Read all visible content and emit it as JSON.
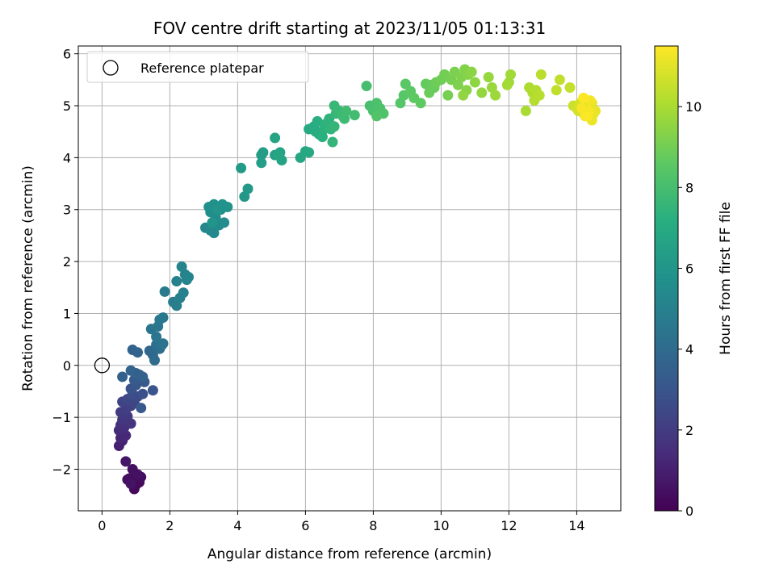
{
  "chart_data": {
    "type": "scatter",
    "title": "FOV centre drift starting at 2023/11/05 01:13:31",
    "xlabel": "Angular distance from reference (arcmin)",
    "ylabel": "Rotation from reference (arcmin)",
    "colorbar_label": "Hours from first FF file",
    "xlim": [
      -0.7,
      15.3
    ],
    "ylim": [
      -2.8,
      6.15
    ],
    "clim": [
      0,
      11.5
    ],
    "x_ticks": [
      0,
      2,
      4,
      6,
      8,
      10,
      12,
      14
    ],
    "y_ticks": [
      -2,
      -1,
      0,
      1,
      2,
      3,
      4,
      5,
      6
    ],
    "colorbar_ticks": [
      0,
      2,
      4,
      6,
      8,
      10
    ],
    "grid": true,
    "colormap": "viridis",
    "legend": {
      "position": "top-left",
      "entries": [
        "Reference platepar"
      ]
    },
    "reference_point": {
      "x": 0,
      "y": 0
    },
    "points": [
      [
        0.9,
        -2.22,
        0.1
      ],
      [
        1.0,
        -2.3,
        0.2
      ],
      [
        0.95,
        -2.38,
        0.25
      ],
      [
        1.1,
        -2.25,
        0.3
      ],
      [
        0.8,
        -2.18,
        0.35
      ],
      [
        1.15,
        -2.15,
        0.4
      ],
      [
        0.75,
        -2.2,
        0.45
      ],
      [
        0.9,
        -2.0,
        0.5
      ],
      [
        1.05,
        -2.1,
        0.55
      ],
      [
        0.85,
        -2.28,
        0.6
      ],
      [
        0.7,
        -1.85,
        0.7
      ],
      [
        0.5,
        -1.55,
        1.0
      ],
      [
        0.6,
        -1.45,
        1.1
      ],
      [
        0.55,
        -1.4,
        1.2
      ],
      [
        0.7,
        -1.35,
        1.3
      ],
      [
        0.5,
        -1.25,
        1.4
      ],
      [
        0.65,
        -1.2,
        1.5
      ],
      [
        0.55,
        -1.15,
        1.6
      ],
      [
        0.85,
        -1.12,
        1.7
      ],
      [
        0.6,
        -1.05,
        1.8
      ],
      [
        0.75,
        -0.98,
        1.9
      ],
      [
        0.55,
        -0.9,
        2.0
      ],
      [
        0.7,
        -0.85,
        2.1
      ],
      [
        0.85,
        -0.78,
        2.2
      ],
      [
        0.6,
        -0.7,
        2.3
      ],
      [
        0.95,
        -0.72,
        2.4
      ],
      [
        0.75,
        -0.65,
        2.5
      ],
      [
        1.05,
        -0.6,
        2.6
      ],
      [
        0.9,
        -0.55,
        2.7
      ],
      [
        1.2,
        -0.55,
        2.8
      ],
      [
        0.85,
        -0.45,
        2.9
      ],
      [
        1.5,
        -0.48,
        3.0
      ],
      [
        1.0,
        -0.38,
        3.1
      ],
      [
        1.25,
        -0.32,
        3.2
      ],
      [
        0.95,
        -0.28,
        3.3
      ],
      [
        1.1,
        -0.2,
        3.4
      ],
      [
        0.6,
        -0.22,
        3.5
      ],
      [
        1.0,
        -0.15,
        3.6
      ],
      [
        0.85,
        -0.1,
        3.7
      ],
      [
        1.15,
        -0.82,
        3.2
      ],
      [
        1.1,
        -0.18,
        3.5
      ],
      [
        1.2,
        -0.22,
        3.6
      ],
      [
        0.9,
        0.3,
        3.6
      ],
      [
        1.05,
        0.25,
        3.7
      ],
      [
        1.4,
        0.28,
        3.8
      ],
      [
        1.5,
        0.2,
        3.9
      ],
      [
        1.55,
        0.1,
        4.0
      ],
      [
        1.7,
        0.32,
        4.1
      ],
      [
        1.6,
        0.4,
        4.2
      ],
      [
        1.75,
        0.38,
        4.3
      ],
      [
        1.8,
        0.42,
        4.35
      ],
      [
        1.45,
        0.7,
        4.4
      ],
      [
        1.6,
        0.55,
        4.45
      ],
      [
        1.65,
        0.75,
        4.5
      ],
      [
        1.7,
        0.88,
        4.6
      ],
      [
        1.8,
        0.92,
        4.65
      ],
      [
        1.85,
        1.42,
        4.7
      ],
      [
        2.1,
        1.22,
        4.8
      ],
      [
        2.2,
        1.15,
        4.85
      ],
      [
        2.3,
        1.3,
        4.9
      ],
      [
        2.4,
        1.4,
        4.95
      ],
      [
        2.2,
        1.62,
        5.0
      ],
      [
        2.5,
        1.65,
        5.05
      ],
      [
        2.45,
        1.75,
        5.1
      ],
      [
        2.35,
        1.9,
        5.15
      ],
      [
        2.55,
        1.7,
        5.2
      ],
      [
        3.05,
        2.65,
        5.3
      ],
      [
        3.2,
        2.6,
        5.35
      ],
      [
        3.3,
        2.55,
        5.4
      ],
      [
        3.45,
        2.7,
        5.45
      ],
      [
        3.6,
        2.75,
        5.5
      ],
      [
        3.35,
        2.85,
        5.55
      ],
      [
        3.2,
        2.95,
        5.6
      ],
      [
        3.5,
        3.0,
        5.65
      ],
      [
        3.15,
        3.05,
        5.7
      ],
      [
        3.3,
        3.1,
        5.75
      ],
      [
        3.55,
        3.1,
        5.8
      ],
      [
        3.7,
        3.05,
        5.85
      ],
      [
        3.4,
        3.0,
        5.9
      ],
      [
        3.25,
        2.75,
        5.95
      ],
      [
        4.1,
        3.8,
        6.2
      ],
      [
        4.2,
        3.25,
        6.1
      ],
      [
        4.3,
        3.4,
        6.15
      ],
      [
        4.7,
        4.05,
        6.3
      ],
      [
        4.75,
        4.1,
        6.35
      ],
      [
        4.7,
        3.9,
        6.4
      ],
      [
        5.1,
        4.05,
        6.5
      ],
      [
        5.25,
        4.1,
        6.55
      ],
      [
        5.3,
        3.95,
        6.6
      ],
      [
        5.1,
        4.38,
        6.65
      ],
      [
        5.2,
        4.05,
        6.7
      ],
      [
        5.85,
        4.0,
        6.8
      ],
      [
        6.0,
        4.12,
        6.85
      ],
      [
        6.1,
        4.1,
        6.9
      ],
      [
        6.1,
        4.55,
        7.0
      ],
      [
        6.25,
        4.6,
        7.05
      ],
      [
        6.3,
        4.5,
        7.1
      ],
      [
        6.4,
        4.45,
        7.15
      ],
      [
        6.35,
        4.7,
        7.2
      ],
      [
        6.5,
        4.4,
        7.25
      ],
      [
        6.55,
        4.55,
        7.3
      ],
      [
        6.6,
        4.65,
        7.35
      ],
      [
        6.7,
        4.75,
        7.4
      ],
      [
        6.75,
        4.55,
        7.45
      ],
      [
        6.8,
        4.3,
        7.5
      ],
      [
        6.85,
        4.6,
        7.55
      ],
      [
        6.9,
        4.85,
        7.6
      ],
      [
        6.85,
        5.0,
        7.65
      ],
      [
        7.0,
        4.9,
        7.7
      ],
      [
        7.1,
        4.8,
        7.75
      ],
      [
        7.15,
        4.75,
        7.8
      ],
      [
        7.2,
        4.9,
        7.85
      ],
      [
        7.45,
        4.82,
        7.9
      ],
      [
        7.8,
        5.38,
        8.0
      ],
      [
        7.9,
        5.0,
        8.05
      ],
      [
        8.0,
        4.9,
        8.1
      ],
      [
        8.1,
        5.05,
        8.15
      ],
      [
        8.2,
        4.95,
        8.2
      ],
      [
        8.3,
        4.85,
        8.25
      ],
      [
        8.1,
        4.8,
        8.3
      ],
      [
        8.8,
        5.05,
        8.4
      ],
      [
        8.9,
        5.2,
        8.45
      ],
      [
        8.95,
        5.42,
        8.5
      ],
      [
        9.1,
        5.28,
        8.55
      ],
      [
        9.2,
        5.15,
        8.6
      ],
      [
        9.4,
        5.05,
        8.65
      ],
      [
        9.55,
        5.42,
        8.7
      ],
      [
        9.7,
        5.4,
        8.75
      ],
      [
        9.8,
        5.35,
        8.8
      ],
      [
        9.65,
        5.25,
        8.85
      ],
      [
        9.85,
        5.45,
        8.9
      ],
      [
        10.0,
        5.5,
        8.95
      ],
      [
        10.1,
        5.6,
        9.0
      ],
      [
        10.2,
        5.2,
        9.05
      ],
      [
        10.3,
        5.5,
        9.1
      ],
      [
        10.4,
        5.65,
        9.15
      ],
      [
        10.5,
        5.4,
        9.2
      ],
      [
        10.6,
        5.55,
        9.25
      ],
      [
        10.7,
        5.7,
        9.3
      ],
      [
        10.8,
        5.6,
        9.35
      ],
      [
        10.75,
        5.3,
        9.4
      ],
      [
        10.9,
        5.65,
        9.45
      ],
      [
        11.0,
        5.45,
        9.5
      ],
      [
        10.65,
        5.2,
        9.55
      ],
      [
        11.2,
        5.25,
        9.6
      ],
      [
        11.4,
        5.55,
        9.65
      ],
      [
        11.5,
        5.35,
        9.7
      ],
      [
        11.6,
        5.2,
        9.75
      ],
      [
        12.0,
        5.45,
        9.8
      ],
      [
        12.05,
        5.6,
        9.85
      ],
      [
        11.95,
        5.4,
        9.9
      ],
      [
        12.5,
        4.9,
        10.0
      ],
      [
        12.6,
        5.35,
        10.05
      ],
      [
        12.7,
        5.25,
        10.1
      ],
      [
        12.8,
        5.3,
        10.15
      ],
      [
        12.75,
        5.1,
        10.2
      ],
      [
        12.9,
        5.2,
        10.25
      ],
      [
        12.95,
        5.6,
        10.3
      ],
      [
        13.4,
        5.3,
        10.4
      ],
      [
        13.5,
        5.5,
        10.45
      ],
      [
        13.8,
        5.35,
        10.5
      ],
      [
        13.9,
        5.0,
        10.6
      ],
      [
        14.0,
        4.95,
        10.7
      ],
      [
        14.05,
        4.9,
        10.75
      ],
      [
        14.1,
        5.05,
        10.8
      ],
      [
        14.2,
        4.85,
        10.85
      ],
      [
        14.3,
        5.1,
        10.9
      ],
      [
        14.35,
        4.95,
        10.95
      ],
      [
        14.4,
        5.0,
        11.0
      ],
      [
        14.45,
        5.05,
        11.05
      ],
      [
        14.5,
        4.85,
        11.1
      ],
      [
        14.55,
        4.9,
        11.15
      ],
      [
        14.45,
        4.72,
        11.2
      ],
      [
        14.25,
        4.8,
        11.25
      ],
      [
        14.4,
        5.1,
        11.3
      ],
      [
        14.35,
        4.9,
        11.35
      ],
      [
        14.15,
        4.95,
        11.4
      ],
      [
        14.3,
        4.8,
        11.45
      ],
      [
        14.2,
        5.15,
        11.5
      ]
    ]
  }
}
